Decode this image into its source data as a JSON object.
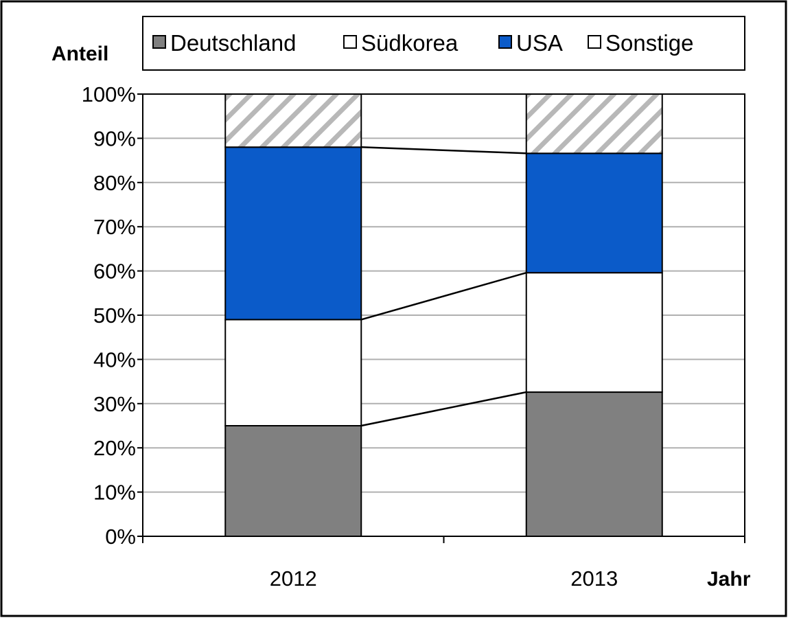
{
  "chart_data": {
    "type": "bar",
    "stacked": "percent",
    "categories": [
      "2012",
      "2013"
    ],
    "series": [
      {
        "name": "Deutschland",
        "values": [
          25,
          32.6
        ],
        "color": "#808080"
      },
      {
        "name": "Südkorea",
        "values": [
          24,
          27
        ],
        "color": "#ffffff"
      },
      {
        "name": "USA",
        "values": [
          39,
          27
        ],
        "color": "#0b5bc9"
      },
      {
        "name": "Sonstige",
        "values": [
          12,
          13.4
        ],
        "color": "hatched-gray"
      }
    ],
    "xlabel": "Jahr",
    "ylabel": "Anteil",
    "ylim": [
      0,
      100
    ],
    "yticks": [
      "0%",
      "10%",
      "20%",
      "30%",
      "40%",
      "50%",
      "60%",
      "70%",
      "80%",
      "90%",
      "100%"
    ],
    "grid": true,
    "legend": "top",
    "series_lines": true
  }
}
